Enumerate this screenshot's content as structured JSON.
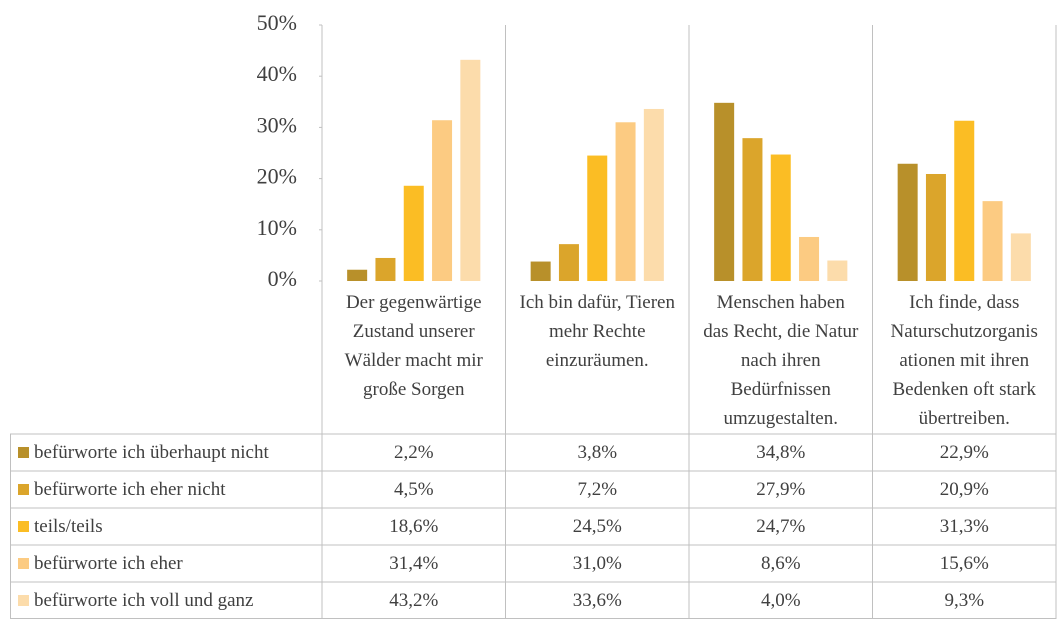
{
  "chart_data": {
    "type": "bar",
    "categories": [
      "Der gegenwärtige Zustand unserer Wälder macht mir große Sorgen",
      "Ich bin dafür, Tieren mehr Rechte einzuräumen.",
      "Menschen haben das Recht, die Natur nach ihren Bedürfnissen umzugestalten.",
      "Ich finde, dass Naturschutzorganisationen mit ihren Bedenken oft stark übertreiben."
    ],
    "series": [
      {
        "name": "befürworte ich überhaupt nicht",
        "color": "#b8902a",
        "values": [
          2.2,
          3.8,
          34.8,
          22.9
        ],
        "value_labels": [
          "2,2%",
          "3,8%",
          "34,8%",
          "22,9%"
        ]
      },
      {
        "name": "befürworte ich eher nicht",
        "color": "#dba52b",
        "values": [
          4.5,
          7.2,
          27.9,
          20.9
        ],
        "value_labels": [
          "4,5%",
          "7,2%",
          "27,9%",
          "20,9%"
        ]
      },
      {
        "name": "teils/teils",
        "color": "#fbbd24",
        "values": [
          18.6,
          24.5,
          24.7,
          31.3
        ],
        "value_labels": [
          "18,6%",
          "24,5%",
          "24,7%",
          "31,3%"
        ]
      },
      {
        "name": "befürworte ich eher",
        "color": "#fccb82",
        "values": [
          31.4,
          31.0,
          8.6,
          15.6
        ],
        "value_labels": [
          "31,4%",
          "31,0%",
          "8,6%",
          "15,6%"
        ]
      },
      {
        "name": "befürworte ich voll und ganz",
        "color": "#fcdcab",
        "values": [
          43.2,
          33.6,
          4.0,
          9.3
        ],
        "value_labels": [
          "43,2%",
          "33,6%",
          "4,0%",
          "9,3%"
        ]
      }
    ],
    "ylim": [
      0,
      50
    ],
    "yticks": [
      {
        "value": 0,
        "label": "0%"
      },
      {
        "value": 10,
        "label": "10%"
      },
      {
        "value": 20,
        "label": "20%"
      },
      {
        "value": 30,
        "label": "30%"
      },
      {
        "value": 40,
        "label": "40%"
      },
      {
        "value": 50,
        "label": "50%"
      }
    ],
    "grid": true
  }
}
